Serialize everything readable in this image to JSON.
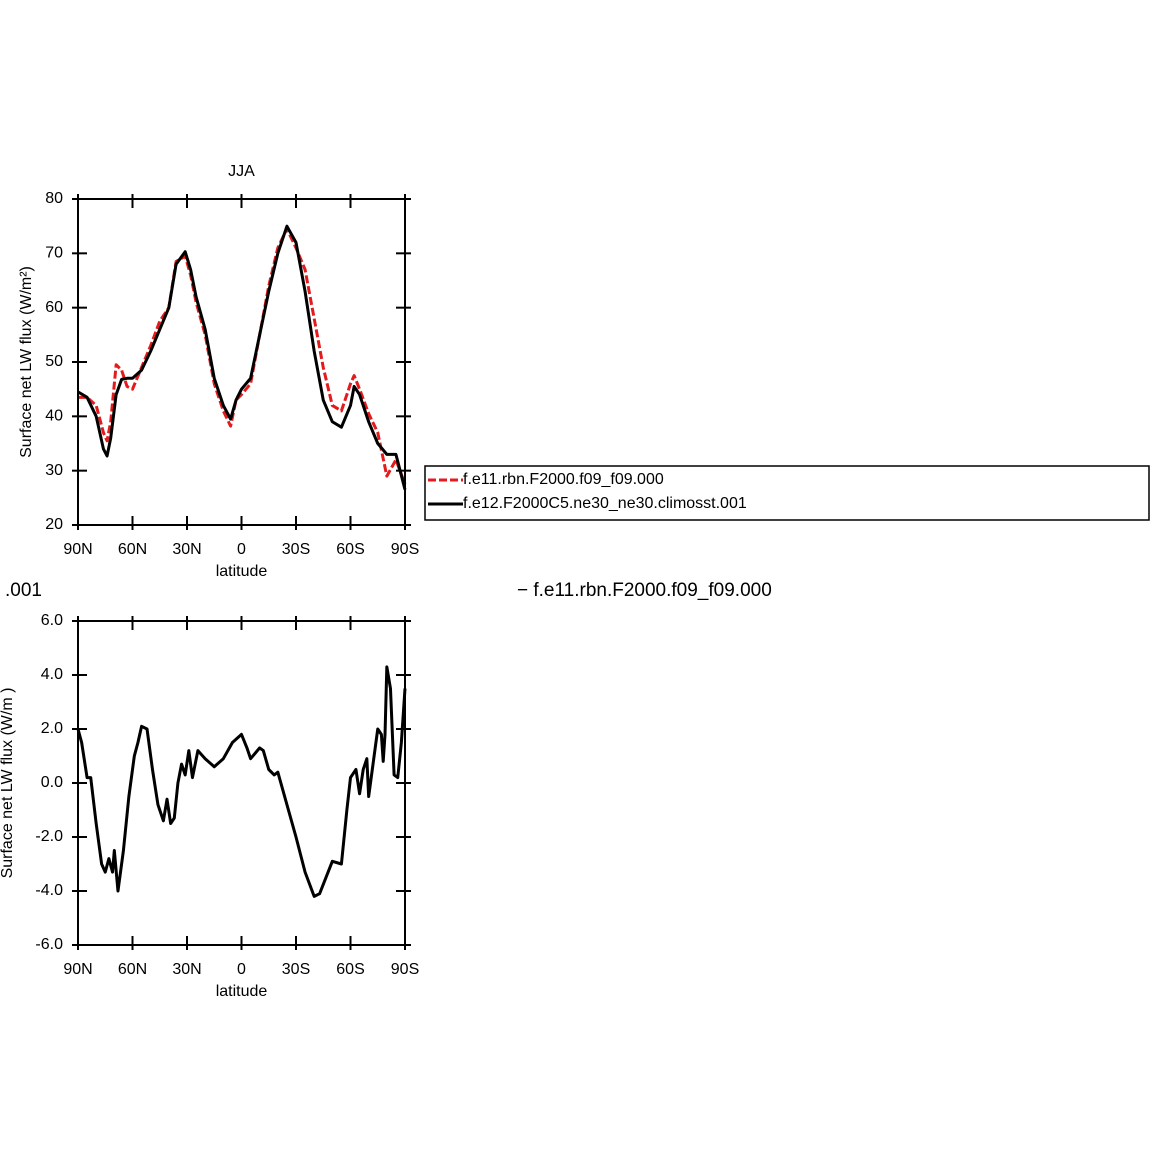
{
  "chart_data": [
    {
      "type": "line",
      "title": "JJA",
      "xlabel": "latitude",
      "ylabel": "Surface net LW flux (W/m²)",
      "x": [
        90,
        85,
        80,
        76,
        74,
        72,
        69,
        66,
        63,
        60,
        55,
        50,
        45,
        40,
        36,
        31,
        28,
        25,
        20,
        15,
        10,
        6,
        3,
        0,
        -5,
        -10,
        -15,
        -20,
        -25,
        -30,
        -35,
        -40,
        -45,
        -50,
        -55,
        -60,
        -62,
        -65,
        -70,
        -75,
        -80,
        -85,
        -90
      ],
      "series": [
        {
          "name": "f.e11.rbn.F2000.f09_f09.000",
          "color": "#e41a1c",
          "dashed": true,
          "values": [
            43.5,
            43.5,
            42,
            37,
            35.5,
            39,
            49.5,
            48.5,
            45.5,
            45,
            49,
            53,
            57.5,
            60,
            68.5,
            69.5,
            66,
            61,
            55,
            46,
            41,
            38.2,
            43,
            44,
            46,
            55,
            64,
            71,
            74.5,
            71,
            67,
            58,
            49,
            42,
            41,
            46,
            47.5,
            45,
            40.5,
            37,
            29,
            32,
            27.5
          ]
        },
        {
          "name": "f.e12.F2000C5.ne30_ne30.climosst.001",
          "color": "#000000",
          "dashed": false,
          "values": [
            44.5,
            43.5,
            40,
            34,
            32.7,
            36,
            44,
            46.8,
            47,
            47,
            48.5,
            52,
            56,
            60,
            68,
            70.3,
            67,
            62,
            56,
            47,
            42,
            39.5,
            43,
            45,
            47,
            55,
            63,
            70,
            75,
            72,
            63,
            52,
            43,
            39,
            38,
            42,
            45.5,
            44,
            39,
            35,
            33,
            33,
            26.5
          ]
        }
      ],
      "xlim": [
        90,
        -90
      ],
      "xticks": [
        {
          "value": 90,
          "label": "90N"
        },
        {
          "value": 60,
          "label": "60N"
        },
        {
          "value": 30,
          "label": "30N"
        },
        0,
        {
          "value": -30,
          "label": "30S"
        },
        {
          "value": -60,
          "label": "60S"
        },
        {
          "value": -90,
          "label": "90S"
        }
      ],
      "ylim": [
        20,
        80
      ],
      "yticks": [
        20,
        30,
        40,
        50,
        60,
        70,
        80
      ],
      "legend": "right"
    },
    {
      "type": "line",
      "title_fragments": [
        ".001",
        "− f.e11.rbn.F2000.f09_f09.000"
      ],
      "xlabel": "latitude",
      "ylabel": "Surface net LW flux (W/m )",
      "x": [
        90,
        88,
        85,
        83,
        80,
        77,
        75,
        73,
        71,
        70,
        68,
        65,
        62,
        59,
        57,
        55,
        52,
        49,
        46,
        43,
        41,
        39,
        37,
        35,
        33,
        31,
        29,
        27,
        24,
        20,
        15,
        10,
        5,
        0,
        -3,
        -5,
        -10,
        -12,
        -15,
        -18,
        -20,
        -25,
        -30,
        -35,
        -40,
        -43,
        -50,
        -55,
        -58,
        -60,
        -63,
        -65,
        -67,
        -69,
        -70,
        -72,
        -75,
        -77,
        -78,
        -79,
        -80,
        -82,
        -84,
        -86,
        -88,
        -90
      ],
      "series": [
        {
          "name": null,
          "color": "#000000",
          "dashed": false,
          "values": [
            2.0,
            1.5,
            0.2,
            0.2,
            -1.5,
            -3.0,
            -3.3,
            -2.8,
            -3.3,
            -2.5,
            -4.0,
            -2.5,
            -0.5,
            1.0,
            1.5,
            2.1,
            2.0,
            0.5,
            -0.8,
            -1.4,
            -0.6,
            -1.5,
            -1.3,
            0,
            0.7,
            0.3,
            1.2,
            0.2,
            1.2,
            0.9,
            0.6,
            0.9,
            1.5,
            1.8,
            1.3,
            0.9,
            1.3,
            1.2,
            0.5,
            0.3,
            0.4,
            -0.8,
            -2.0,
            -3.3,
            -4.2,
            -4.1,
            -2.9,
            -3.0,
            -1.0,
            0.2,
            0.5,
            -0.4,
            0.5,
            0.9,
            -0.5,
            0.5,
            2.0,
            1.8,
            0.8,
            1.8,
            4.3,
            3.5,
            0.3,
            0.2,
            1.5,
            3.5
          ]
        }
      ],
      "xlim": [
        90,
        -90
      ],
      "xticks": [
        {
          "value": 90,
          "label": "90N"
        },
        {
          "value": 60,
          "label": "60N"
        },
        {
          "value": 30,
          "label": "30N"
        },
        0,
        {
          "value": -30,
          "label": "30S"
        },
        {
          "value": -60,
          "label": "60S"
        },
        {
          "value": -90,
          "label": "90S"
        }
      ],
      "ylim": [
        -6,
        6
      ],
      "yticks": [
        {
          "value": -6,
          "label": "-6.0"
        },
        {
          "value": -4,
          "label": "-4.0"
        },
        {
          "value": -2,
          "label": "-2.0"
        },
        {
          "value": 0,
          "label": "0.0"
        },
        {
          "value": 2,
          "label": "2.0"
        },
        {
          "value": 4,
          "label": "4.0"
        },
        {
          "value": 6,
          "label": "6.0"
        }
      ]
    }
  ]
}
